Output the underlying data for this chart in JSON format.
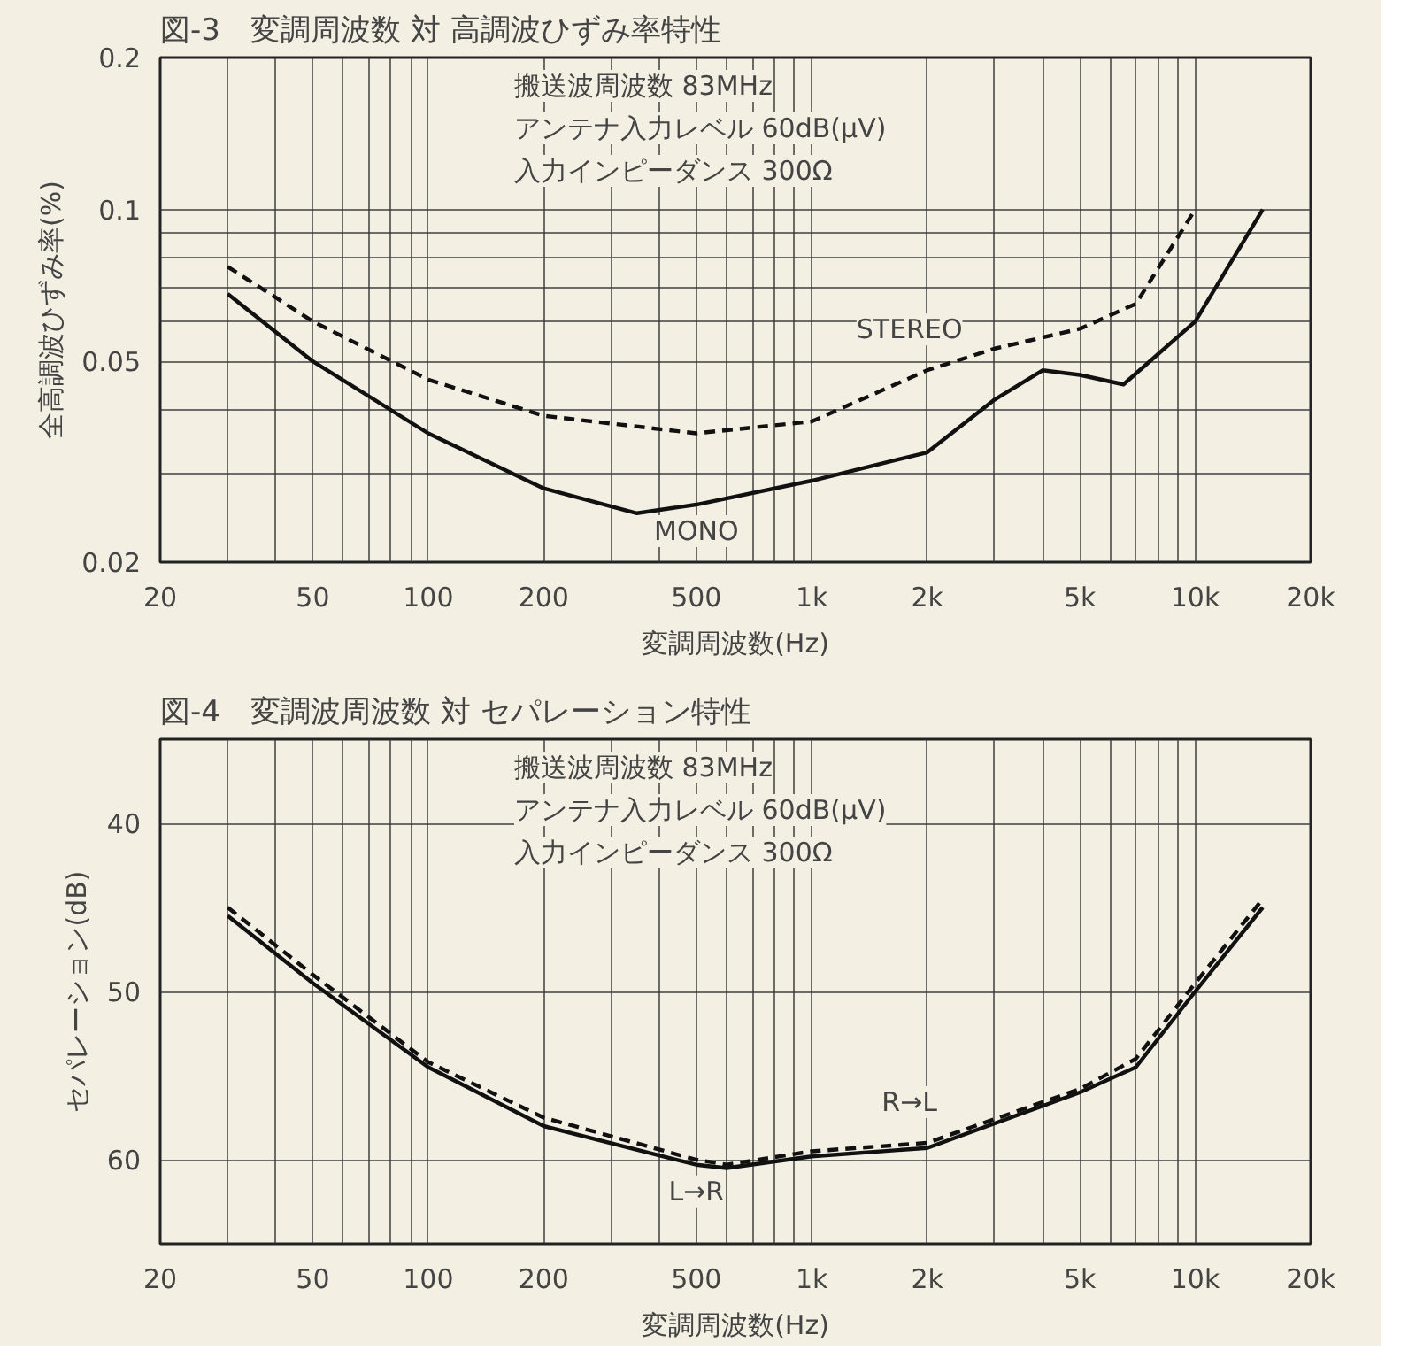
{
  "chart_data": [
    {
      "type": "line",
      "title": "図-3　変調周波数 対 高調波ひずみ率特性",
      "xlabel": "変調周波数(Hz)",
      "ylabel": "全高調波ひずみ率(%)",
      "log": "xy",
      "grid": true,
      "xlim": [
        20,
        20000
      ],
      "ylim": [
        0.02,
        0.2
      ],
      "xticks": [
        20,
        {
          "value": 30,
          "label": null
        },
        {
          "value": 40,
          "label": null
        },
        50,
        {
          "value": 60,
          "label": null
        },
        {
          "value": 70,
          "label": null
        },
        {
          "value": 80,
          "label": null
        },
        {
          "value": 90,
          "label": null
        },
        100,
        200,
        {
          "value": 300,
          "label": null
        },
        {
          "value": 400,
          "label": null
        },
        500,
        {
          "value": 600,
          "label": null
        },
        {
          "value": 700,
          "label": null
        },
        {
          "value": 800,
          "label": null
        },
        {
          "value": 900,
          "label": null
        },
        {
          "value": 1000,
          "label": "1k"
        },
        {
          "value": 2000,
          "label": "2k"
        },
        {
          "value": 3000,
          "label": null
        },
        {
          "value": 4000,
          "label": null
        },
        {
          "value": 5000,
          "label": "5k"
        },
        {
          "value": 6000,
          "label": null
        },
        {
          "value": 7000,
          "label": null
        },
        {
          "value": 8000,
          "label": null
        },
        {
          "value": 9000,
          "label": null
        },
        {
          "value": 10000,
          "label": "10k"
        },
        {
          "value": 20000,
          "label": "20k"
        }
      ],
      "yticks": [
        0.02,
        {
          "value": 0.03,
          "label": null
        },
        {
          "value": 0.04,
          "label": null
        },
        0.05,
        {
          "value": 0.06,
          "label": null
        },
        {
          "value": 0.07,
          "label": null
        },
        {
          "value": 0.08,
          "label": null
        },
        {
          "value": 0.09,
          "label": null
        },
        0.1,
        0.2
      ],
      "annotations": [
        "搬送波周波数 83MHz",
        "アンテナ入力レベル 60dB(μV)",
        "入力インピーダンス 300Ω"
      ],
      "series": [
        {
          "name": "STEREO",
          "color": "#111111",
          "line_style": "dashed",
          "x": [
            30,
            50,
            100,
            200,
            500,
            1000,
            2000,
            3000,
            5000,
            7000,
            10000
          ],
          "values": [
            0.077,
            0.06,
            0.046,
            0.039,
            0.036,
            0.038,
            0.048,
            0.053,
            0.058,
            0.065,
            0.1
          ]
        },
        {
          "name": "MONO",
          "color": "#111111",
          "line_style": "solid",
          "x": [
            30,
            50,
            100,
            200,
            350,
            500,
            1000,
            2000,
            3000,
            4000,
            5000,
            6500,
            10000,
            15000
          ],
          "values": [
            0.068,
            0.05,
            0.036,
            0.028,
            0.025,
            0.026,
            0.029,
            0.033,
            0.042,
            0.048,
            0.047,
            0.045,
            0.06,
            0.1
          ]
        }
      ]
    },
    {
      "type": "line",
      "title": "図-4　変調波周波数 対 セパレーション特性",
      "xlabel": "変調周波数(Hz)",
      "ylabel": "セパレーション(dB)",
      "log": "x",
      "grid": true,
      "xlim": [
        20,
        20000
      ],
      "ylim": [
        65,
        35
      ],
      "xticks": [
        20,
        {
          "value": 30,
          "label": null
        },
        {
          "value": 40,
          "label": null
        },
        50,
        {
          "value": 60,
          "label": null
        },
        {
          "value": 70,
          "label": null
        },
        {
          "value": 80,
          "label": null
        },
        {
          "value": 90,
          "label": null
        },
        100,
        200,
        {
          "value": 300,
          "label": null
        },
        {
          "value": 400,
          "label": null
        },
        500,
        {
          "value": 600,
          "label": null
        },
        {
          "value": 700,
          "label": null
        },
        {
          "value": 800,
          "label": null
        },
        {
          "value": 900,
          "label": null
        },
        {
          "value": 1000,
          "label": "1k"
        },
        {
          "value": 2000,
          "label": "2k"
        },
        {
          "value": 3000,
          "label": null
        },
        {
          "value": 4000,
          "label": null
        },
        {
          "value": 5000,
          "label": "5k"
        },
        {
          "value": 6000,
          "label": null
        },
        {
          "value": 7000,
          "label": null
        },
        {
          "value": 8000,
          "label": null
        },
        {
          "value": 9000,
          "label": null
        },
        {
          "value": 10000,
          "label": "10k"
        },
        {
          "value": 20000,
          "label": "20k"
        }
      ],
      "yticks": [
        40,
        50,
        60
      ],
      "annotations": [
        "搬送波周波数 83MHz",
        "アンテナ入力レベル 60dB(μV)",
        "入力インピーダンス 300Ω"
      ],
      "series": [
        {
          "name": "R→L",
          "color": "#111111",
          "line_style": "dashed",
          "x": [
            30,
            50,
            100,
            200,
            500,
            600,
            1000,
            2000,
            5000,
            7000,
            10000,
            15000
          ],
          "values": [
            45,
            49,
            54.2,
            57.5,
            60,
            60.3,
            59.5,
            59,
            55.8,
            54,
            49.5,
            44.5
          ]
        },
        {
          "name": "L→R",
          "color": "#111111",
          "line_style": "solid",
          "x": [
            30,
            50,
            100,
            200,
            500,
            600,
            1000,
            2000,
            5000,
            7000,
            10000,
            15000
          ],
          "values": [
            45.5,
            49.5,
            54.5,
            58,
            60.3,
            60.5,
            59.8,
            59.3,
            56,
            54.5,
            50,
            45
          ]
        }
      ]
    }
  ]
}
